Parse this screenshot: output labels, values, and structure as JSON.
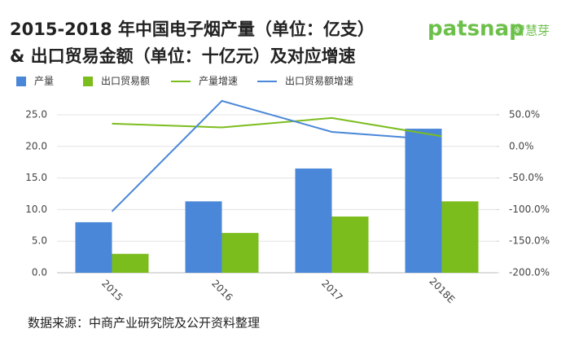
{
  "chart_data": {
    "type": "combo",
    "title": [
      "2015-2018 年中国电子烟产量（单位：亿支）",
      "& 出口贸易金额（单位：十亿元）及对应增速"
    ],
    "logo": "patsnap",
    "logo_sub": "智慧芽",
    "source": "数据来源：中商产业研究院及公开资料整理",
    "categories": [
      "2015",
      "2016",
      "2017",
      "2018E"
    ],
    "series": [
      {
        "name": "产量",
        "type": "bar",
        "axis": "y",
        "color": "#4a87d8",
        "values": [
          8.0,
          11.3,
          16.5,
          22.8
        ]
      },
      {
        "name": "出口贸易额",
        "type": "bar",
        "axis": "y",
        "color": "#7cbd1e",
        "values": [
          3.0,
          6.3,
          8.9,
          11.3
        ]
      },
      {
        "name": "产量增速",
        "type": "line",
        "axis": "y2",
        "color": "#7cbd1e",
        "values": [
          36,
          30,
          45,
          16
        ]
      },
      {
        "name": "出口贸易额增速",
        "type": "line",
        "axis": "y2",
        "color": "#4a87d8",
        "values": [
          -103,
          72,
          23,
          10
        ]
      }
    ],
    "ylim": [
      0,
      25
    ],
    "yticks": [
      {
        "value": 0,
        "label": "0.0"
      },
      {
        "value": 5,
        "label": "5.0"
      },
      {
        "value": 10,
        "label": "10.0"
      },
      {
        "value": 15,
        "label": "15.0"
      },
      {
        "value": 20,
        "label": "20.0"
      },
      {
        "value": 25,
        "label": "25.0"
      }
    ],
    "y2lim": [
      -200,
      50
    ],
    "y2ticks": [
      {
        "value": -200,
        "label": "-200.0%"
      },
      {
        "value": -150,
        "label": "-150.0%"
      },
      {
        "value": -100,
        "label": "-100.0%"
      },
      {
        "value": -50,
        "label": "-50.0%"
      },
      {
        "value": 0,
        "label": "0.0%"
      },
      {
        "value": 50,
        "label": "50.0%"
      }
    ],
    "grid": true
  }
}
